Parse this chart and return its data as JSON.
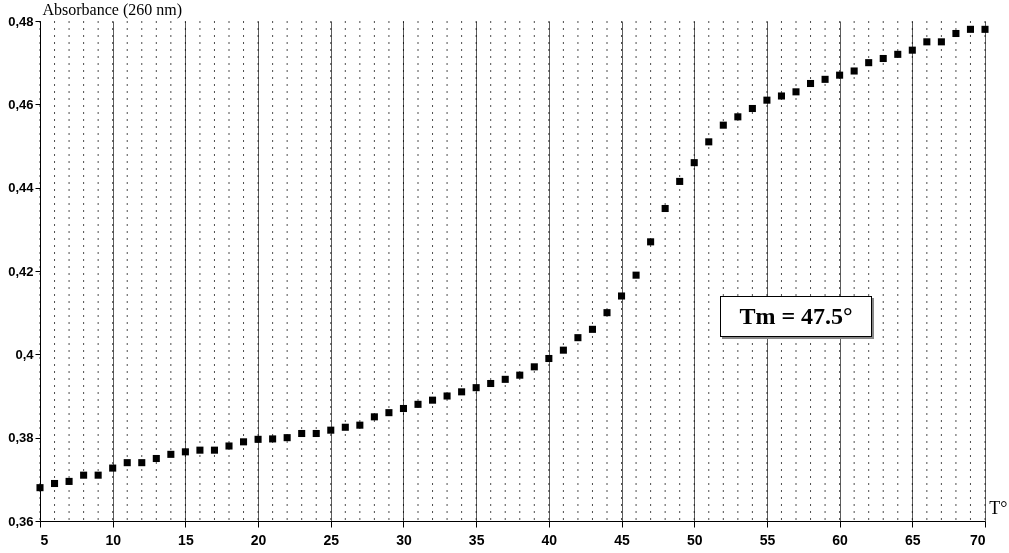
{
  "chart_data": {
    "type": "scatter",
    "xlabel": "T°",
    "ylabel": "Absorbance (260 nm)",
    "x": [
      5,
      6,
      7,
      8,
      9,
      10,
      11,
      12,
      13,
      14,
      15,
      16,
      17,
      18,
      19,
      20,
      21,
      22,
      23,
      24,
      25,
      26,
      27,
      28,
      29,
      30,
      31,
      32,
      33,
      34,
      35,
      36,
      37,
      38,
      39,
      40,
      41,
      42,
      43,
      44,
      45,
      46,
      47,
      48,
      49,
      50,
      51,
      52,
      53,
      54,
      55,
      56,
      57,
      58,
      59,
      60,
      61,
      62,
      63,
      64,
      65,
      66,
      67,
      68,
      69,
      70
    ],
    "values": [
      0.368,
      0.369,
      0.3695,
      0.371,
      0.371,
      0.3727,
      0.374,
      0.374,
      0.375,
      0.376,
      0.3766,
      0.377,
      0.377,
      0.378,
      0.379,
      0.3796,
      0.3797,
      0.38,
      0.381,
      0.381,
      0.3818,
      0.3825,
      0.383,
      0.385,
      0.386,
      0.387,
      0.388,
      0.389,
      0.39,
      0.391,
      0.392,
      0.393,
      0.394,
      0.395,
      0.397,
      0.399,
      0.401,
      0.404,
      0.406,
      0.41,
      0.414,
      0.419,
      0.427,
      0.435,
      0.4415,
      0.446,
      0.451,
      0.455,
      0.457,
      0.459,
      0.461,
      0.462,
      0.463,
      0.465,
      0.466,
      0.467,
      0.468,
      0.47,
      0.471,
      0.472,
      0.473,
      0.475,
      0.475,
      0.477,
      0.478,
      0.478
    ],
    "color": "#000000",
    "marker": "square",
    "grid": "x",
    "xlim": [
      5,
      70
    ],
    "xticks": [
      5,
      10,
      15,
      20,
      25,
      30,
      35,
      40,
      45,
      50,
      55,
      60,
      65,
      70
    ],
    "ylim": [
      0.36,
      0.48
    ],
    "yticks": [
      {
        "value": 0.36,
        "label": "0,36"
      },
      {
        "value": 0.38,
        "label": "0,38"
      },
      {
        "value": 0.4,
        "label": "0,4"
      },
      {
        "value": 0.42,
        "label": "0,42"
      },
      {
        "value": 0.44,
        "label": "0,44"
      },
      {
        "value": 0.46,
        "label": "0,46"
      },
      {
        "value": 0.48,
        "label": "0,48"
      }
    ],
    "annotations": [
      "Tm = 47.5°"
    ]
  }
}
